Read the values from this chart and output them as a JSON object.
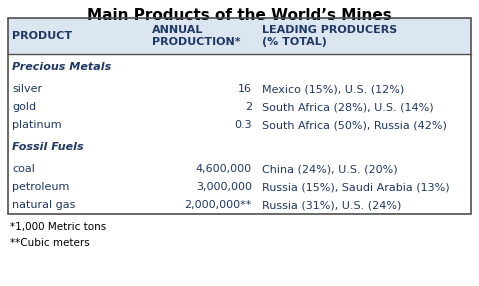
{
  "title": "Main Products of the World’s Mines",
  "title_fontsize": 11,
  "background_color": "#ffffff",
  "header_bg": "#dce6f1",
  "table_border_color": "#4f4f4f",
  "headers": [
    "PRODUCT",
    "ANNUAL\nPRODUCTION*",
    "LEADING PRODUCERS\n(% TOTAL)"
  ],
  "section_rows": [
    {
      "label": "Precious Metals"
    },
    {
      "product": "silver",
      "production": "16",
      "producers": "Mexico (15%), U.S. (12%)"
    },
    {
      "product": "gold",
      "production": "2",
      "producers": "South Africa (28%), U.S. (14%)"
    },
    {
      "product": "platinum",
      "production": "0.3",
      "producers": "South Africa (50%), Russia (42%)"
    },
    {
      "label": "Fossil Fuels"
    },
    {
      "product": "coal",
      "production": "4,600,000",
      "producers": "China (24%), U.S. (20%)"
    },
    {
      "product": "petroleum",
      "production": "3,000,000",
      "producers": "Russia (15%), Saudi Arabia (13%)"
    },
    {
      "product": "natural gas",
      "production": "2,000,000**",
      "producers": "Russia (31%), U.S. (24%)"
    }
  ],
  "footnotes": [
    "*1,000 Metric tons",
    "**Cubic meters"
  ],
  "font_size": 8,
  "header_font_size": 8,
  "text_color": "#1f3864"
}
